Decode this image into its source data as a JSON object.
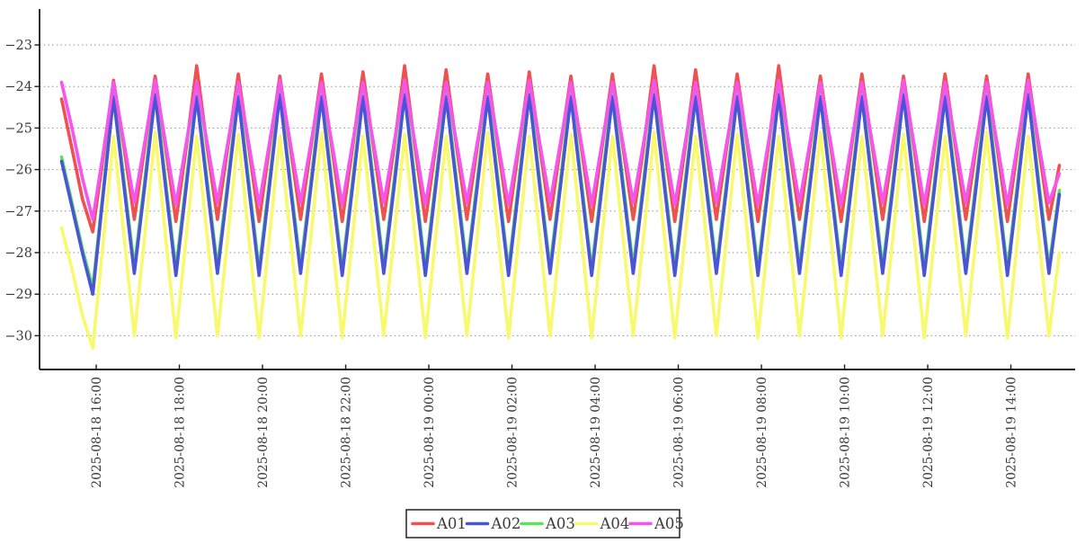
{
  "chart_data": {
    "type": "line",
    "title": "",
    "xlabel": "",
    "ylabel": "",
    "grid": "horizontal-dotted",
    "legend_position": "bottom-center",
    "x_start": "2025-08-18 15:10",
    "x_step_minutes": 15,
    "ylim": [
      -30.85,
      -22.1
    ],
    "y_ticks": [
      -23,
      -24,
      -25,
      -26,
      -27,
      -28,
      -29,
      -30
    ],
    "y_tick_labels": [
      "−23",
      "−24",
      "−25",
      "−26",
      "−27",
      "−28",
      "−29",
      "−30"
    ],
    "x_ticks": [
      {
        "label": "2025-08-18 16:00",
        "min": 50
      },
      {
        "label": "2025-08-18 18:00",
        "min": 170
      },
      {
        "label": "2025-08-18 20:00",
        "min": 290
      },
      {
        "label": "2025-08-18 22:00",
        "min": 410
      },
      {
        "label": "2025-08-19 00:00",
        "min": 530
      },
      {
        "label": "2025-08-19 02:00",
        "min": 650
      },
      {
        "label": "2025-08-19 04:00",
        "min": 770
      },
      {
        "label": "2025-08-19 06:00",
        "min": 890
      },
      {
        "label": "2025-08-19 08:00",
        "min": 1010
      },
      {
        "label": "2025-08-19 10:00",
        "min": 1130
      },
      {
        "label": "2025-08-19 12:00",
        "min": 1250
      },
      {
        "label": "2025-08-19 14:00",
        "min": 1370
      }
    ],
    "series": [
      {
        "name": "A01",
        "color": "#ef5050",
        "values": [
          -24.3,
          -25.5,
          -26.7,
          -27.5,
          -25.7,
          -23.85,
          -25.45,
          -27.2,
          -25.45,
          -23.75,
          -25.45,
          -27.25,
          -25.45,
          -23.5,
          -25.45,
          -27.2,
          -25.45,
          -23.7,
          -25.45,
          -27.25,
          -25.45,
          -23.75,
          -25.45,
          -27.2,
          -25.45,
          -23.7,
          -25.45,
          -27.25,
          -25.45,
          -23.65,
          -25.45,
          -27.2,
          -25.45,
          -23.5,
          -25.45,
          -27.25,
          -25.45,
          -23.6,
          -25.45,
          -27.2,
          -25.45,
          -23.7,
          -25.45,
          -27.25,
          -25.45,
          -23.65,
          -25.45,
          -27.2,
          -25.45,
          -23.75,
          -25.45,
          -27.25,
          -25.45,
          -23.7,
          -25.45,
          -27.2,
          -25.45,
          -23.5,
          -25.45,
          -27.25,
          -25.45,
          -23.6,
          -25.45,
          -27.2,
          -25.45,
          -23.7,
          -25.45,
          -27.25,
          -25.45,
          -23.5,
          -25.45,
          -27.2,
          -25.45,
          -23.75,
          -25.45,
          -27.25,
          -25.45,
          -23.7,
          -25.45,
          -27.2,
          -25.45,
          -23.75,
          -25.45,
          -27.25,
          -25.45,
          -23.7,
          -25.45,
          -27.2,
          -25.45,
          -23.75,
          -25.45,
          -27.25,
          -25.45,
          -23.7,
          -25.45,
          -27.2,
          -25.9
        ]
      },
      {
        "name": "A02",
        "color": "#4a55d5",
        "values": [
          -25.8,
          -26.9,
          -28.0,
          -29.0,
          -26.6,
          -24.25,
          -26.4,
          -28.5,
          -26.4,
          -24.2,
          -26.4,
          -28.55,
          -26.4,
          -24.25,
          -26.4,
          -28.5,
          -26.4,
          -24.25,
          -26.4,
          -28.55,
          -26.4,
          -24.2,
          -26.4,
          -28.5,
          -26.4,
          -24.25,
          -26.4,
          -28.55,
          -26.4,
          -24.25,
          -26.4,
          -28.5,
          -26.4,
          -24.2,
          -26.4,
          -28.55,
          -26.4,
          -24.25,
          -26.4,
          -28.5,
          -26.4,
          -24.25,
          -26.4,
          -28.55,
          -26.4,
          -24.2,
          -26.4,
          -28.5,
          -26.4,
          -24.25,
          -26.4,
          -28.55,
          -26.4,
          -24.25,
          -26.4,
          -28.5,
          -26.4,
          -24.2,
          -26.4,
          -28.55,
          -26.4,
          -24.25,
          -26.4,
          -28.5,
          -26.4,
          -24.25,
          -26.4,
          -28.55,
          -26.4,
          -24.2,
          -26.4,
          -28.5,
          -26.4,
          -24.25,
          -26.4,
          -28.55,
          -26.4,
          -24.25,
          -26.4,
          -28.5,
          -26.4,
          -24.2,
          -26.4,
          -28.55,
          -26.4,
          -24.25,
          -26.4,
          -28.5,
          -26.4,
          -24.25,
          -26.4,
          -28.55,
          -26.4,
          -24.2,
          -26.4,
          -28.5,
          -26.6
        ]
      },
      {
        "name": "A03",
        "color": "#5de25d",
        "values": [
          -25.7,
          -26.8,
          -27.9,
          -28.85,
          -26.5,
          -24.1,
          -26.25,
          -28.35,
          -26.25,
          -24.05,
          -26.25,
          -28.4,
          -26.25,
          -24.1,
          -26.25,
          -28.35,
          -26.25,
          -24.1,
          -26.25,
          -28.4,
          -26.25,
          -24.05,
          -26.25,
          -28.35,
          -26.25,
          -24.1,
          -26.25,
          -28.4,
          -26.25,
          -24.1,
          -26.25,
          -28.35,
          -26.25,
          -24.05,
          -26.25,
          -28.4,
          -26.25,
          -24.1,
          -26.25,
          -28.35,
          -26.25,
          -24.1,
          -26.25,
          -28.4,
          -26.25,
          -24.05,
          -26.25,
          -28.35,
          -26.25,
          -24.1,
          -26.25,
          -28.4,
          -26.25,
          -24.1,
          -26.25,
          -28.35,
          -26.25,
          -24.05,
          -26.25,
          -28.4,
          -26.25,
          -24.1,
          -26.25,
          -28.35,
          -26.25,
          -24.1,
          -26.25,
          -28.4,
          -26.25,
          -24.05,
          -26.25,
          -28.35,
          -26.25,
          -24.1,
          -26.25,
          -28.4,
          -26.25,
          -24.1,
          -26.25,
          -28.35,
          -26.25,
          -24.05,
          -26.25,
          -28.4,
          -26.25,
          -24.1,
          -26.25,
          -28.35,
          -26.25,
          -24.1,
          -26.25,
          -28.4,
          -26.25,
          -24.05,
          -26.25,
          -28.35,
          -26.5
        ]
      },
      {
        "name": "A04",
        "color": "#f9f96e",
        "values": [
          -27.4,
          -28.4,
          -29.5,
          -30.3,
          -27.75,
          -25.2,
          -27.6,
          -30.0,
          -27.6,
          -25.1,
          -27.6,
          -30.05,
          -27.6,
          -25.2,
          -27.6,
          -30.0,
          -27.6,
          -25.15,
          -27.6,
          -30.05,
          -27.6,
          -25.2,
          -27.6,
          -30.0,
          -27.6,
          -25.1,
          -27.6,
          -30.05,
          -27.6,
          -25.2,
          -27.6,
          -30.0,
          -27.6,
          -25.15,
          -27.6,
          -30.05,
          -27.6,
          -25.2,
          -27.6,
          -30.0,
          -27.6,
          -25.1,
          -27.6,
          -30.05,
          -27.6,
          -25.2,
          -27.6,
          -30.0,
          -27.6,
          -25.15,
          -27.6,
          -30.05,
          -27.6,
          -25.2,
          -27.6,
          -30.0,
          -27.6,
          -25.1,
          -27.6,
          -30.05,
          -27.6,
          -25.2,
          -27.6,
          -30.0,
          -27.6,
          -25.15,
          -27.6,
          -30.05,
          -27.6,
          -25.2,
          -27.6,
          -30.0,
          -27.6,
          -25.1,
          -27.6,
          -30.05,
          -27.6,
          -25.2,
          -27.6,
          -30.0,
          -27.6,
          -25.15,
          -27.6,
          -30.05,
          -27.6,
          -25.2,
          -27.6,
          -30.0,
          -27.6,
          -25.1,
          -27.6,
          -30.05,
          -27.6,
          -25.2,
          -27.6,
          -30.0,
          -28.0
        ]
      },
      {
        "name": "A05",
        "color": "#f455ee",
        "values": [
          -23.9,
          -25.0,
          -26.2,
          -27.2,
          -25.6,
          -23.9,
          -25.35,
          -26.8,
          -25.35,
          -23.85,
          -25.35,
          -26.85,
          -25.35,
          -23.9,
          -25.35,
          -26.8,
          -25.35,
          -23.9,
          -25.35,
          -26.85,
          -25.35,
          -23.85,
          -25.35,
          -26.8,
          -25.35,
          -23.9,
          -25.35,
          -26.85,
          -25.35,
          -23.9,
          -25.35,
          -26.8,
          -25.35,
          -23.85,
          -25.35,
          -26.85,
          -25.35,
          -23.9,
          -25.35,
          -26.8,
          -25.35,
          -23.9,
          -25.35,
          -26.85,
          -25.35,
          -23.85,
          -25.35,
          -26.8,
          -25.35,
          -23.9,
          -25.35,
          -26.85,
          -25.35,
          -23.9,
          -25.35,
          -26.8,
          -25.35,
          -23.85,
          -25.35,
          -26.85,
          -25.35,
          -23.9,
          -25.35,
          -26.8,
          -25.35,
          -23.9,
          -25.35,
          -26.85,
          -25.35,
          -23.85,
          -25.35,
          -26.8,
          -25.35,
          -23.9,
          -25.35,
          -26.85,
          -25.35,
          -23.9,
          -25.35,
          -26.8,
          -25.35,
          -23.85,
          -25.35,
          -26.85,
          -25.35,
          -23.9,
          -25.35,
          -26.8,
          -25.35,
          -23.9,
          -25.35,
          -26.85,
          -25.35,
          -23.85,
          -25.35,
          -26.8,
          -26.1
        ]
      }
    ],
    "draw_order": [
      "A04",
      "A03",
      "A02",
      "A01",
      "A05"
    ]
  },
  "colors": {
    "background": "#ffffff",
    "axis": "#1a1a1a",
    "grid": "#909090",
    "text": "#3a3a3a",
    "legend_border": "#222222",
    "legend_background": "#ffffff"
  }
}
